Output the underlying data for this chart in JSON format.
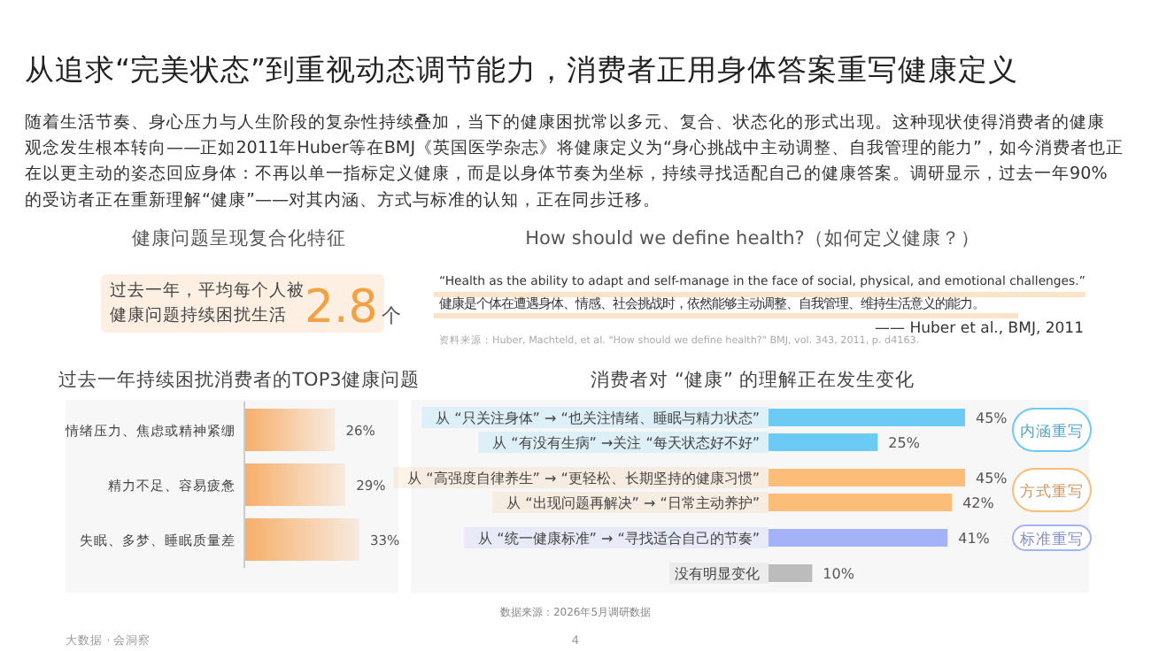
{
  "chart_data": [
    {
      "type": "other",
      "title": "从追求“完美状态”到重视动态调节能力，消费者正用身体答案重写健康定义",
      "subtitle": "随着生活节奏、身心压力与人生阶段的复杂性持续叠加，当下的健康困扰常以多元、复合、状态化的形式出现。这种现状使得消费者的健康观念发生根本转向——正如2011年Huber等在BMJ《英国医学杂志》将健康定义为“身心挑战中主动调整、自我管理的能力”，如今消费者也正在以更主动的姿态回应身体：不再以单一指标定义健康，而是以身体节奏为坐标，持续寻找适配自己的健康答案。调研显示，过去一年90%的受访者正在重新理解“健康”——对其内涵、方式与标准的认知，正在同步迁移。",
      "annotations": [
        "健康问题呈现复合化特征",
        "过去一年，平均每个人被",
        "健康问题持续困扰生活",
        "2.8个",
        "How should we define health?（如何定义健康？）",
        "“Health as the ability to adapt and self-manage in the face of social, physical, and emotional challenges.”",
        "健康是个体在遭遇身体、情感、社会挑战时，依然能够主动调整、自我管理、维持生活意义的能力。",
        "—— Huber et al., BMJ, 2011",
        "资料来源：Huber, Machteld, et al. \"How should we define health?\" BMJ, vol. 343, 2011, p. d4163.",
        "大数据 · 会洞察",
        "4"
      ]
    },
    {
      "type": "bar",
      "orientation": "horizontal",
      "title": "过去一年持续困扰消费者的TOP3健康问题",
      "categories": [
        "情绪压力、焦虑或精神紧绷",
        "精力不足、容易疲惫",
        "失眠、多梦、睡眠质量差"
      ],
      "values": [
        26,
        29,
        33
      ],
      "color": "#f7a65a",
      "value_labels": [
        "26%",
        "29%",
        "33%"
      ]
    },
    {
      "type": "bar",
      "orientation": "horizontal",
      "title": "消费者对 “健康” 的理解正在发生变化",
      "categories": [
        "从 “只关注身体” → “也关注情绪、睡眠与精力状态”",
        "从 “有没有生病” →关注 “每天状态好不好”",
        "从 “高强度自律养生” → “更轻松、长期坚持的健康习惯”",
        "从 “出现问题再解决” → “日常主动养护”",
        "从 “统一健康标准” → “寻找适合自己的节奏”",
        "没有明显变化"
      ],
      "values": [
        45,
        25,
        45,
        42,
        41,
        10
      ],
      "colors": [
        "#6ccbf4",
        "#6ccbf4",
        "#fbbd78",
        "#fbbd78",
        "#a4b2f7",
        "#bcbcbc"
      ],
      "value_labels": [
        "45%",
        "25%",
        "45%",
        "42%",
        "41%",
        "10%"
      ],
      "annotations": [
        "内涵重写",
        "方式重写",
        "标准重写",
        "数据来源：2026年5月调研数据"
      ]
    }
  ]
}
